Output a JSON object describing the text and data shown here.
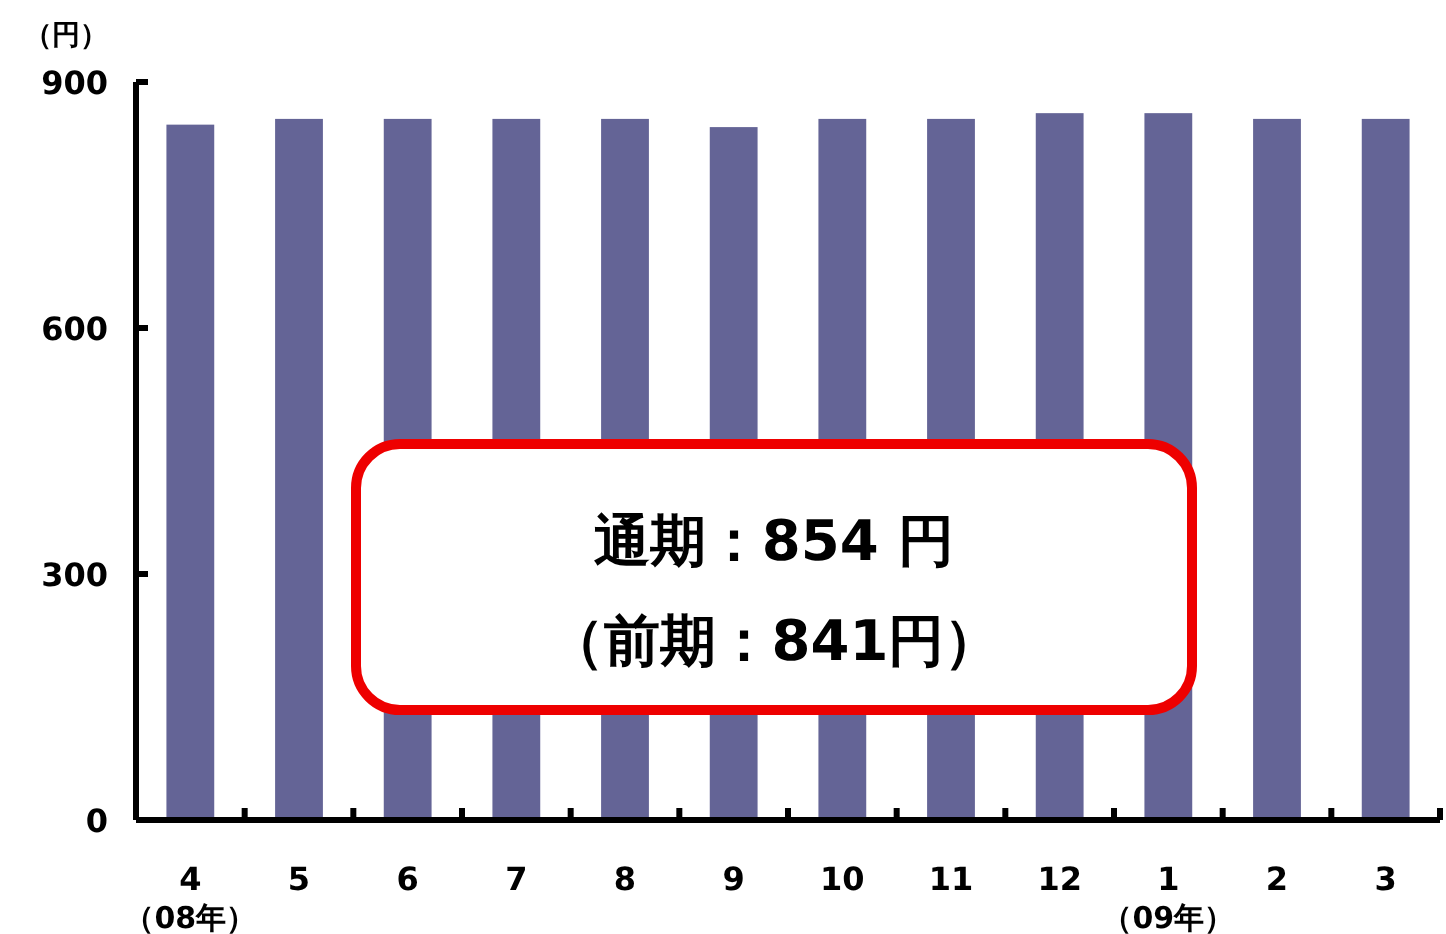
{
  "chart_data": {
    "type": "bar",
    "ylabel": "（円）",
    "categories": [
      "4\n（08年）",
      "5",
      "6",
      "7",
      "8",
      "9",
      "10",
      "11",
      "12",
      "1\n（09年）",
      "2",
      "3"
    ],
    "values": [
      848,
      855,
      855,
      855,
      855,
      845,
      855,
      855,
      862,
      862,
      855,
      855
    ],
    "color": "#646496",
    "ylim": [
      0,
      900
    ],
    "yticks": [
      0,
      300,
      600,
      900
    ],
    "grid": false,
    "annotations": [
      "通期：854 円",
      "（前期：841円）"
    ]
  }
}
